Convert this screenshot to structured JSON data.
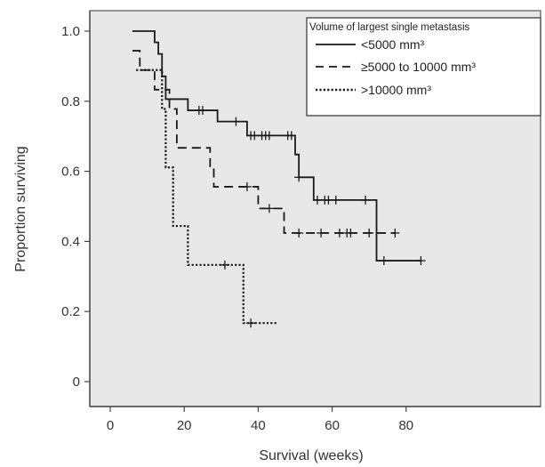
{
  "chart_data": {
    "type": "line",
    "subtype": "kaplan-meier step survival curve",
    "title": "",
    "xlabel": "Survival (weeks)",
    "ylabel": "Proportion surviving",
    "xlim": [
      -5,
      92
    ],
    "ylim": [
      -0.07,
      1.04
    ],
    "xticks": [
      0,
      20,
      40,
      60,
      80
    ],
    "yticks": [
      0,
      0.2,
      0.4,
      0.6,
      0.8,
      1.0
    ],
    "xtick_labels": [
      "0",
      "20",
      "40",
      "60",
      "80"
    ],
    "ytick_labels": [
      "0",
      "0.2",
      "0.4",
      "0.6",
      "0.8",
      "1.0"
    ],
    "grid": false,
    "plot_background": "#e8e8e8",
    "legend": {
      "title": "Volume of largest single metastasis",
      "placement": "top-right"
    },
    "series": [
      {
        "name": "<5000 mm³",
        "style": "solid",
        "steps": [
          [
            6,
            1.0
          ],
          [
            12,
            0.968
          ],
          [
            13,
            0.935
          ],
          [
            14,
            0.871
          ],
          [
            15,
            0.806
          ],
          [
            21,
            0.774
          ],
          [
            29,
            0.742
          ],
          [
            37,
            0.702
          ],
          [
            50,
            0.648
          ],
          [
            51,
            0.583
          ],
          [
            55,
            0.518
          ],
          [
            72,
            0.345
          ],
          [
            84,
            0.345
          ]
        ],
        "censored": [
          [
            24,
            0.774
          ],
          [
            25,
            0.774
          ],
          [
            34,
            0.742
          ],
          [
            38,
            0.702
          ],
          [
            39,
            0.702
          ],
          [
            41,
            0.702
          ],
          [
            42,
            0.702
          ],
          [
            43,
            0.702
          ],
          [
            48,
            0.702
          ],
          [
            49,
            0.702
          ],
          [
            51,
            0.583
          ],
          [
            56,
            0.518
          ],
          [
            58,
            0.518
          ],
          [
            59,
            0.518
          ],
          [
            61,
            0.518
          ],
          [
            69,
            0.518
          ],
          [
            74,
            0.345
          ],
          [
            84,
            0.345
          ]
        ]
      },
      {
        "name": "≥5000 to 10000 mm³",
        "style": "dashed",
        "steps": [
          [
            6,
            0.944
          ],
          [
            8,
            0.889
          ],
          [
            12,
            0.833
          ],
          [
            16,
            0.778
          ],
          [
            18,
            0.667
          ],
          [
            27,
            0.611
          ],
          [
            28,
            0.556
          ],
          [
            40,
            0.494
          ],
          [
            47,
            0.424
          ],
          [
            77,
            0.424
          ]
        ],
        "censored": [
          [
            37,
            0.556
          ],
          [
            43,
            0.494
          ],
          [
            51,
            0.424
          ],
          [
            57,
            0.424
          ],
          [
            62,
            0.424
          ],
          [
            64,
            0.424
          ],
          [
            65,
            0.424
          ],
          [
            70,
            0.424
          ],
          [
            77,
            0.424
          ]
        ]
      },
      {
        "name": ">10000 mm³",
        "style": "dotted",
        "steps": [
          [
            7,
            0.889
          ],
          [
            10,
            0.889
          ],
          [
            14,
            0.778
          ],
          [
            15,
            0.611
          ],
          [
            17,
            0.444
          ],
          [
            19,
            0.444
          ],
          [
            21,
            0.333
          ],
          [
            34,
            0.333
          ],
          [
            36,
            0.167
          ],
          [
            45,
            0.167
          ]
        ],
        "censored": [
          [
            31,
            0.333
          ],
          [
            38,
            0.167
          ]
        ]
      }
    ]
  }
}
